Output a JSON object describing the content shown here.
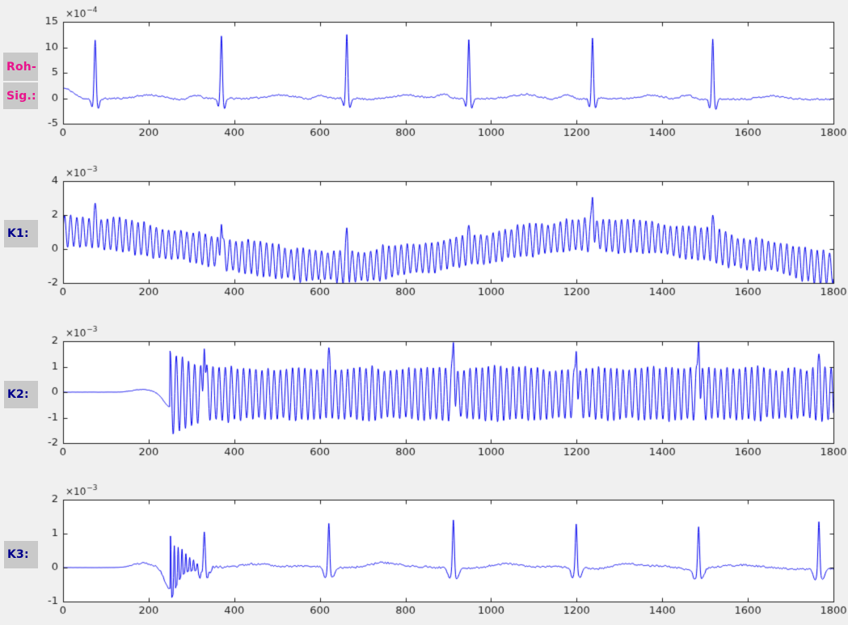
{
  "side_labels": {
    "roh_line1": "Roh-",
    "roh_line2": "Sig.:",
    "k1": "K1:",
    "k2": "K2:",
    "k3": "K3:"
  },
  "colors": {
    "figure_background": "#f0f0f0",
    "plot_background": "#ffffff",
    "line": "#0000ee",
    "axis": "#1a1a1a",
    "tick_label": "#1f1f1f",
    "label_box": "#c9c9c9",
    "roh_label": "#e8148c",
    "k_label": "#00008b"
  },
  "chart_data": [
    {
      "type": "line",
      "name": "roh_sig",
      "side_label": "Roh- Sig.:",
      "exponent": {
        "base": "×10",
        "power": "−4"
      },
      "xlim": [
        0,
        1800
      ],
      "xticks": [
        0,
        200,
        400,
        600,
        800,
        1000,
        1200,
        1400,
        1600,
        1800
      ],
      "ylim": [
        -5,
        15
      ],
      "yticks": [
        -5,
        0,
        5,
        10,
        15
      ],
      "grid": false,
      "legend": null,
      "signal": {
        "kind": "ecg_raw",
        "description": "raw ECG, units 1e-4, QRS spikes over noisy baseline",
        "start_value": 1.7,
        "start_decay": 22,
        "baseline_offset": -0.12,
        "wander": 0.2,
        "noise": 0.17,
        "beats": [
          [
            75,
            11.4
          ],
          [
            370,
            12.2
          ],
          [
            663,
            12.5
          ],
          [
            948,
            11.5
          ],
          [
            1237,
            11.8
          ],
          [
            1518,
            11.6
          ]
        ],
        "q_dip": -1.6,
        "s_dip": -1.9,
        "p_amp": 0.85,
        "t_amp": 0.7
      }
    },
    {
      "type": "line",
      "name": "k1",
      "side_label": "K1:",
      "exponent": {
        "base": "×10",
        "power": "−3"
      },
      "xlim": [
        0,
        1800
      ],
      "xticks": [
        0,
        200,
        400,
        600,
        800,
        1000,
        1200,
        1400,
        1600,
        1800
      ],
      "ylim": [
        -2,
        4
      ],
      "yticks": [
        -2,
        0,
        2,
        4
      ],
      "grid": false,
      "legend": null,
      "signal": {
        "kind": "hum_drift",
        "description": "dense mains-hum oscillation riding a slow baseline wander, ECG spikes poking through",
        "period": 14.3,
        "osc_amp": 0.95,
        "amp_jitter": 0.12,
        "noise": 0.09,
        "mean_keys": [
          [
            0,
            1.05
          ],
          [
            120,
            0.85
          ],
          [
            260,
            0.25
          ],
          [
            420,
            -0.45
          ],
          [
            560,
            -0.95
          ],
          [
            680,
            -1.05
          ],
          [
            820,
            -0.6
          ],
          [
            960,
            -0.05
          ],
          [
            1100,
            0.55
          ],
          [
            1220,
            0.85
          ],
          [
            1330,
            0.75
          ],
          [
            1480,
            0.35
          ],
          [
            1620,
            -0.35
          ],
          [
            1800,
            -1.15
          ]
        ],
        "spikes": [
          [
            75,
            2.7
          ],
          [
            370,
            1.45
          ],
          [
            663,
            1.25
          ],
          [
            948,
            1.4
          ],
          [
            1237,
            3.05
          ],
          [
            1518,
            2.0
          ]
        ]
      }
    },
    {
      "type": "line",
      "name": "k2",
      "side_label": "K2:",
      "exponent": {
        "base": "×10",
        "power": "−3"
      },
      "xlim": [
        0,
        1800
      ],
      "xticks": [
        0,
        200,
        400,
        600,
        800,
        1000,
        1200,
        1400,
        1600,
        1800
      ],
      "ylim": [
        -2,
        2
      ],
      "yticks": [
        -2,
        -1,
        0,
        1,
        2
      ],
      "grid": false,
      "legend": null,
      "signal": {
        "kind": "hum_onset",
        "description": "flat start, dip, then steady hum oscillation from x=250 with ECG spikes",
        "flat_until": 148,
        "bump": [
          185,
          22,
          0.1
        ],
        "predip": [
          251,
          16,
          -0.58
        ],
        "onset": 250,
        "period": 14.3,
        "base_amp": 1.0,
        "extra_amp": 0.6,
        "extra_decay": 55,
        "amp_jitter": 0.08,
        "mean": -0.06,
        "noise": 0.07,
        "phase": 1.45,
        "spikes": [
          [
            330,
            1.7
          ],
          [
            621,
            1.75
          ],
          [
            912,
            1.95
          ],
          [
            1199,
            1.6
          ],
          [
            1485,
            2.0
          ],
          [
            1766,
            1.5
          ]
        ]
      }
    },
    {
      "type": "line",
      "name": "k3",
      "side_label": "K3:",
      "exponent": {
        "base": "×10",
        "power": "−3"
      },
      "xlim": [
        0,
        1800
      ],
      "xticks": [
        0,
        200,
        400,
        600,
        800,
        1000,
        1200,
        1400,
        1600,
        1800
      ],
      "ylim": [
        -1,
        2
      ],
      "yticks": [
        -1,
        0,
        1,
        2
      ],
      "grid": false,
      "legend": null,
      "signal": {
        "kind": "filtered_ecg",
        "description": "filtered ECG: flat start, dip, ringing transient at x=250, then clean QRS spikes",
        "flat_until": 148,
        "bump": [
          185,
          22,
          0.1
        ],
        "predip": [
          250,
          13,
          -0.62
        ],
        "transient": {
          "start": 251,
          "amp": 1.55,
          "decay": 30,
          "period": 9,
          "neg_clip": -0.2
        },
        "noise": 0.03,
        "slow_noise": 0.06,
        "beats": [
          [
            330,
            1.05
          ],
          [
            621,
            1.3
          ],
          [
            912,
            1.4
          ],
          [
            1199,
            1.28
          ],
          [
            1485,
            1.2
          ],
          [
            1766,
            1.35
          ]
        ],
        "pre_dip": -0.3,
        "post_dip": -0.3,
        "t_amp": 0.12
      }
    }
  ]
}
